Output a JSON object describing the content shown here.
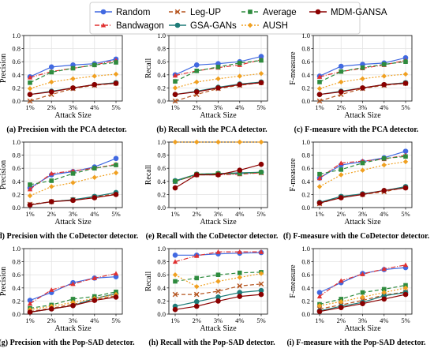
{
  "legend": {
    "entries": [
      {
        "name": "Random",
        "color": "#4169e1",
        "dash": "",
        "marker": "circle"
      },
      {
        "name": "Leg-UP",
        "color": "#b5541f",
        "dash": "5,3",
        "marker": "x"
      },
      {
        "name": "Average",
        "color": "#2e8b3e",
        "dash": "5,3",
        "marker": "square"
      },
      {
        "name": "MDM-GANSA",
        "color": "#8b0000",
        "dash": "",
        "marker": "circle"
      },
      {
        "name": "Bandwagon",
        "color": "#e03030",
        "dash": "6,2,1,2",
        "marker": "triangle"
      },
      {
        "name": "GSA-GANs",
        "color": "#1e7b78",
        "dash": "",
        "marker": "circle"
      },
      {
        "name": "AUSH",
        "color": "#f0a020",
        "dash": "2,2",
        "marker": "diamond"
      }
    ]
  },
  "chart_data": [
    {
      "type": "line",
      "title": "(a) Precision with the PCA detector.",
      "xlabel": "Attack Size",
      "ylabel": "Precision",
      "categories": [
        "1%",
        "2%",
        "3%",
        "4%",
        "5%"
      ],
      "ylim": [
        0,
        1.0
      ],
      "yticks": [
        "0.0",
        "0.2",
        "0.4",
        "0.6",
        "0.8",
        "1.0"
      ],
      "series": [
        {
          "name": "Random",
          "values": [
            0.37,
            0.52,
            0.55,
            0.57,
            0.64
          ]
        },
        {
          "name": "Bandwagon",
          "values": [
            0.36,
            0.45,
            0.5,
            0.55,
            0.62
          ]
        },
        {
          "name": "Leg-UP",
          "values": [
            0.0,
            0.1,
            0.19,
            0.24,
            0.27
          ]
        },
        {
          "name": "GSA-GANs",
          "values": [
            0.1,
            0.15,
            0.2,
            0.25,
            0.28
          ]
        },
        {
          "name": "Average",
          "values": [
            0.28,
            0.44,
            0.5,
            0.55,
            0.59
          ]
        },
        {
          "name": "AUSH",
          "values": [
            0.19,
            0.29,
            0.34,
            0.38,
            0.41
          ]
        },
        {
          "name": "MDM-GANSA",
          "values": [
            0.1,
            0.14,
            0.2,
            0.25,
            0.27
          ]
        }
      ]
    },
    {
      "type": "line",
      "title": "(b) Recall with the PCA detector.",
      "xlabel": "Attack Size",
      "ylabel": "Recall",
      "categories": [
        "1%",
        "2%",
        "3%",
        "4%",
        "5%"
      ],
      "ylim": [
        0,
        1.0
      ],
      "yticks": [
        "0.0",
        "0.2",
        "0.4",
        "0.6",
        "0.8",
        "1.0"
      ],
      "series": [
        {
          "name": "Random",
          "values": [
            0.4,
            0.55,
            0.57,
            0.6,
            0.68
          ]
        },
        {
          "name": "Bandwagon",
          "values": [
            0.39,
            0.46,
            0.51,
            0.55,
            0.63
          ]
        },
        {
          "name": "Leg-UP",
          "values": [
            0.0,
            0.1,
            0.19,
            0.24,
            0.28
          ]
        },
        {
          "name": "GSA-GANs",
          "values": [
            0.1,
            0.15,
            0.21,
            0.26,
            0.29
          ]
        },
        {
          "name": "Average",
          "values": [
            0.3,
            0.46,
            0.52,
            0.58,
            0.62
          ]
        },
        {
          "name": "AUSH",
          "values": [
            0.2,
            0.29,
            0.34,
            0.38,
            0.42
          ]
        },
        {
          "name": "MDM-GANSA",
          "values": [
            0.1,
            0.14,
            0.2,
            0.25,
            0.28
          ]
        }
      ]
    },
    {
      "type": "line",
      "title": "(c) F-measure with the PCA detector.",
      "xlabel": "Attack Size",
      "ylabel": "F-measure",
      "categories": [
        "1%",
        "2%",
        "3%",
        "4%",
        "5%"
      ],
      "ylim": [
        0,
        1.0
      ],
      "yticks": [
        "0.0",
        "0.2",
        "0.4",
        "0.6",
        "0.8",
        "1.0"
      ],
      "series": [
        {
          "name": "Random",
          "values": [
            0.38,
            0.53,
            0.56,
            0.58,
            0.66
          ]
        },
        {
          "name": "Bandwagon",
          "values": [
            0.37,
            0.45,
            0.5,
            0.55,
            0.62
          ]
        },
        {
          "name": "Leg-UP",
          "values": [
            0.0,
            0.1,
            0.19,
            0.24,
            0.27
          ]
        },
        {
          "name": "GSA-GANs",
          "values": [
            0.1,
            0.15,
            0.2,
            0.25,
            0.28
          ]
        },
        {
          "name": "Average",
          "values": [
            0.29,
            0.45,
            0.51,
            0.56,
            0.6
          ]
        },
        {
          "name": "AUSH",
          "values": [
            0.19,
            0.29,
            0.34,
            0.38,
            0.41
          ]
        },
        {
          "name": "MDM-GANSA",
          "values": [
            0.1,
            0.14,
            0.2,
            0.25,
            0.27
          ]
        }
      ]
    },
    {
      "type": "line",
      "title": "(d) Precision with the CoDetector detector.",
      "xlabel": "Attack Size",
      "ylabel": "Precision",
      "categories": [
        "1%",
        "2%",
        "3%",
        "4%",
        "5%"
      ],
      "ylim": [
        0,
        1.0
      ],
      "yticks": [
        "0.0",
        "0.2",
        "0.4",
        "0.6",
        "0.8",
        "1.0"
      ],
      "series": [
        {
          "name": "Random",
          "values": [
            0.3,
            0.5,
            0.55,
            0.62,
            0.75
          ]
        },
        {
          "name": "Bandwagon",
          "values": [
            0.28,
            0.52,
            0.56,
            0.6,
            0.66
          ]
        },
        {
          "name": "Leg-UP",
          "values": [
            0.05,
            0.09,
            0.12,
            0.16,
            0.21
          ]
        },
        {
          "name": "GSA-GANs",
          "values": [
            0.04,
            0.09,
            0.12,
            0.17,
            0.23
          ]
        },
        {
          "name": "Average",
          "values": [
            0.35,
            0.41,
            0.52,
            0.6,
            0.65
          ]
        },
        {
          "name": "AUSH",
          "values": [
            0.18,
            0.32,
            0.38,
            0.46,
            0.53
          ]
        },
        {
          "name": "MDM-GANSA",
          "values": [
            0.04,
            0.09,
            0.11,
            0.15,
            0.2
          ]
        }
      ]
    },
    {
      "type": "line",
      "title": "(e) Recall with the CoDetector detector.",
      "xlabel": "Attack Size",
      "ylabel": "Recall",
      "categories": [
        "1%",
        "2%",
        "3%",
        "4%",
        "5%"
      ],
      "ylim": [
        0,
        1.0
      ],
      "yticks": [
        "0.0",
        "0.2",
        "0.4",
        "0.6",
        "0.8",
        "1.0"
      ],
      "series": [
        {
          "name": "Random",
          "values": [
            0.4,
            0.51,
            0.51,
            0.52,
            0.54
          ]
        },
        {
          "name": "Bandwagon",
          "values": [
            0.4,
            0.5,
            0.5,
            0.51,
            0.53
          ]
        },
        {
          "name": "Leg-UP",
          "values": [
            0.4,
            0.5,
            0.51,
            0.52,
            0.53
          ]
        },
        {
          "name": "GSA-GANs",
          "values": [
            0.41,
            0.51,
            0.52,
            0.53,
            0.54
          ]
        },
        {
          "name": "Average",
          "values": [
            0.4,
            0.51,
            0.52,
            0.52,
            0.54
          ]
        },
        {
          "name": "AUSH",
          "values": [
            1.0,
            1.0,
            1.0,
            1.0,
            1.0
          ]
        },
        {
          "name": "MDM-GANSA",
          "values": [
            0.3,
            0.5,
            0.5,
            0.57,
            0.66
          ]
        }
      ]
    },
    {
      "type": "line",
      "title": "(f) F-measure with the CoDetector detector.",
      "xlabel": "Attack Size",
      "ylabel": "F-measure",
      "categories": [
        "1%",
        "2%",
        "3%",
        "4%",
        "5%"
      ],
      "ylim": [
        0,
        1.0
      ],
      "yticks": [
        "0.0",
        "0.2",
        "0.4",
        "0.6",
        "0.8",
        "1.0"
      ],
      "series": [
        {
          "name": "Random",
          "values": [
            0.45,
            0.65,
            0.7,
            0.76,
            0.86
          ]
        },
        {
          "name": "Bandwagon",
          "values": [
            0.45,
            0.68,
            0.71,
            0.74,
            0.8
          ]
        },
        {
          "name": "Leg-UP",
          "values": [
            0.06,
            0.16,
            0.2,
            0.24,
            0.31
          ]
        },
        {
          "name": "GSA-GANs",
          "values": [
            0.08,
            0.17,
            0.21,
            0.26,
            0.32
          ]
        },
        {
          "name": "Average",
          "values": [
            0.51,
            0.58,
            0.68,
            0.75,
            0.78
          ]
        },
        {
          "name": "AUSH",
          "values": [
            0.32,
            0.5,
            0.57,
            0.65,
            0.7
          ]
        },
        {
          "name": "MDM-GANSA",
          "values": [
            0.07,
            0.15,
            0.2,
            0.26,
            0.3
          ]
        }
      ]
    },
    {
      "type": "line",
      "title": "(g) Precision with the Pop-SAD detector.",
      "xlabel": "Attack Size",
      "ylabel": "Precision",
      "categories": [
        "1%",
        "2%",
        "3%",
        "4%",
        "5%"
      ],
      "ylim": [
        0,
        1.0
      ],
      "yticks": [
        "0.0",
        "0.2",
        "0.4",
        "0.6",
        "0.8",
        "1.0"
      ],
      "series": [
        {
          "name": "Random",
          "values": [
            0.21,
            0.33,
            0.48,
            0.55,
            0.57
          ]
        },
        {
          "name": "Bandwagon",
          "values": [
            0.16,
            0.37,
            0.46,
            0.55,
            0.62
          ]
        },
        {
          "name": "Leg-UP",
          "values": [
            0.04,
            0.09,
            0.15,
            0.22,
            0.28
          ]
        },
        {
          "name": "GSA-GANs",
          "values": [
            0.03,
            0.08,
            0.13,
            0.24,
            0.31
          ]
        },
        {
          "name": "Average",
          "values": [
            0.09,
            0.14,
            0.23,
            0.27,
            0.34
          ]
        },
        {
          "name": "AUSH",
          "values": [
            0.07,
            0.12,
            0.18,
            0.24,
            0.3
          ]
        },
        {
          "name": "MDM-GANSA",
          "values": [
            0.03,
            0.08,
            0.13,
            0.21,
            0.26
          ]
        }
      ]
    },
    {
      "type": "line",
      "title": "(h) Recall with the Pop-SAD detector.",
      "xlabel": "Attack Size",
      "ylabel": "Recall",
      "categories": [
        "1%",
        "2%",
        "3%",
        "4%",
        "5%"
      ],
      "ylim": [
        0,
        1.0
      ],
      "yticks": [
        "0.0",
        "0.2",
        "0.4",
        "0.6",
        "0.8",
        "1.0"
      ],
      "series": [
        {
          "name": "Random",
          "values": [
            0.9,
            0.9,
            0.92,
            0.93,
            0.94
          ]
        },
        {
          "name": "Bandwagon",
          "values": [
            0.8,
            0.89,
            0.95,
            0.95,
            0.95
          ]
        },
        {
          "name": "Leg-UP",
          "values": [
            0.3,
            0.3,
            0.35,
            0.43,
            0.46
          ]
        },
        {
          "name": "GSA-GANs",
          "values": [
            0.12,
            0.19,
            0.26,
            0.33,
            0.36
          ]
        },
        {
          "name": "Average",
          "values": [
            0.5,
            0.55,
            0.6,
            0.63,
            0.64
          ]
        },
        {
          "name": "AUSH",
          "values": [
            0.6,
            0.42,
            0.5,
            0.56,
            0.62
          ]
        },
        {
          "name": "MDM-GANSA",
          "values": [
            0.07,
            0.12,
            0.2,
            0.27,
            0.3
          ]
        }
      ]
    },
    {
      "type": "line",
      "title": "(i) F-measure with the Pop-SAD detector.",
      "xlabel": "Attack Size",
      "ylabel": "F-measure",
      "categories": [
        "1%",
        "2%",
        "3%",
        "4%",
        "5%"
      ],
      "ylim": [
        0,
        1.0
      ],
      "yticks": [
        "0.0",
        "0.2",
        "0.4",
        "0.6",
        "0.8",
        "1.0"
      ],
      "series": [
        {
          "name": "Random",
          "values": [
            0.33,
            0.48,
            0.62,
            0.68,
            0.71
          ]
        },
        {
          "name": "Bandwagon",
          "values": [
            0.27,
            0.51,
            0.61,
            0.69,
            0.75
          ]
        },
        {
          "name": "Leg-UP",
          "values": [
            0.08,
            0.14,
            0.21,
            0.29,
            0.34
          ]
        },
        {
          "name": "GSA-GANs",
          "values": [
            0.05,
            0.12,
            0.18,
            0.28,
            0.33
          ]
        },
        {
          "name": "Average",
          "values": [
            0.15,
            0.23,
            0.33,
            0.38,
            0.44
          ]
        },
        {
          "name": "AUSH",
          "values": [
            0.13,
            0.19,
            0.26,
            0.33,
            0.4
          ]
        },
        {
          "name": "MDM-GANSA",
          "values": [
            0.04,
            0.1,
            0.16,
            0.23,
            0.3
          ]
        }
      ]
    }
  ]
}
